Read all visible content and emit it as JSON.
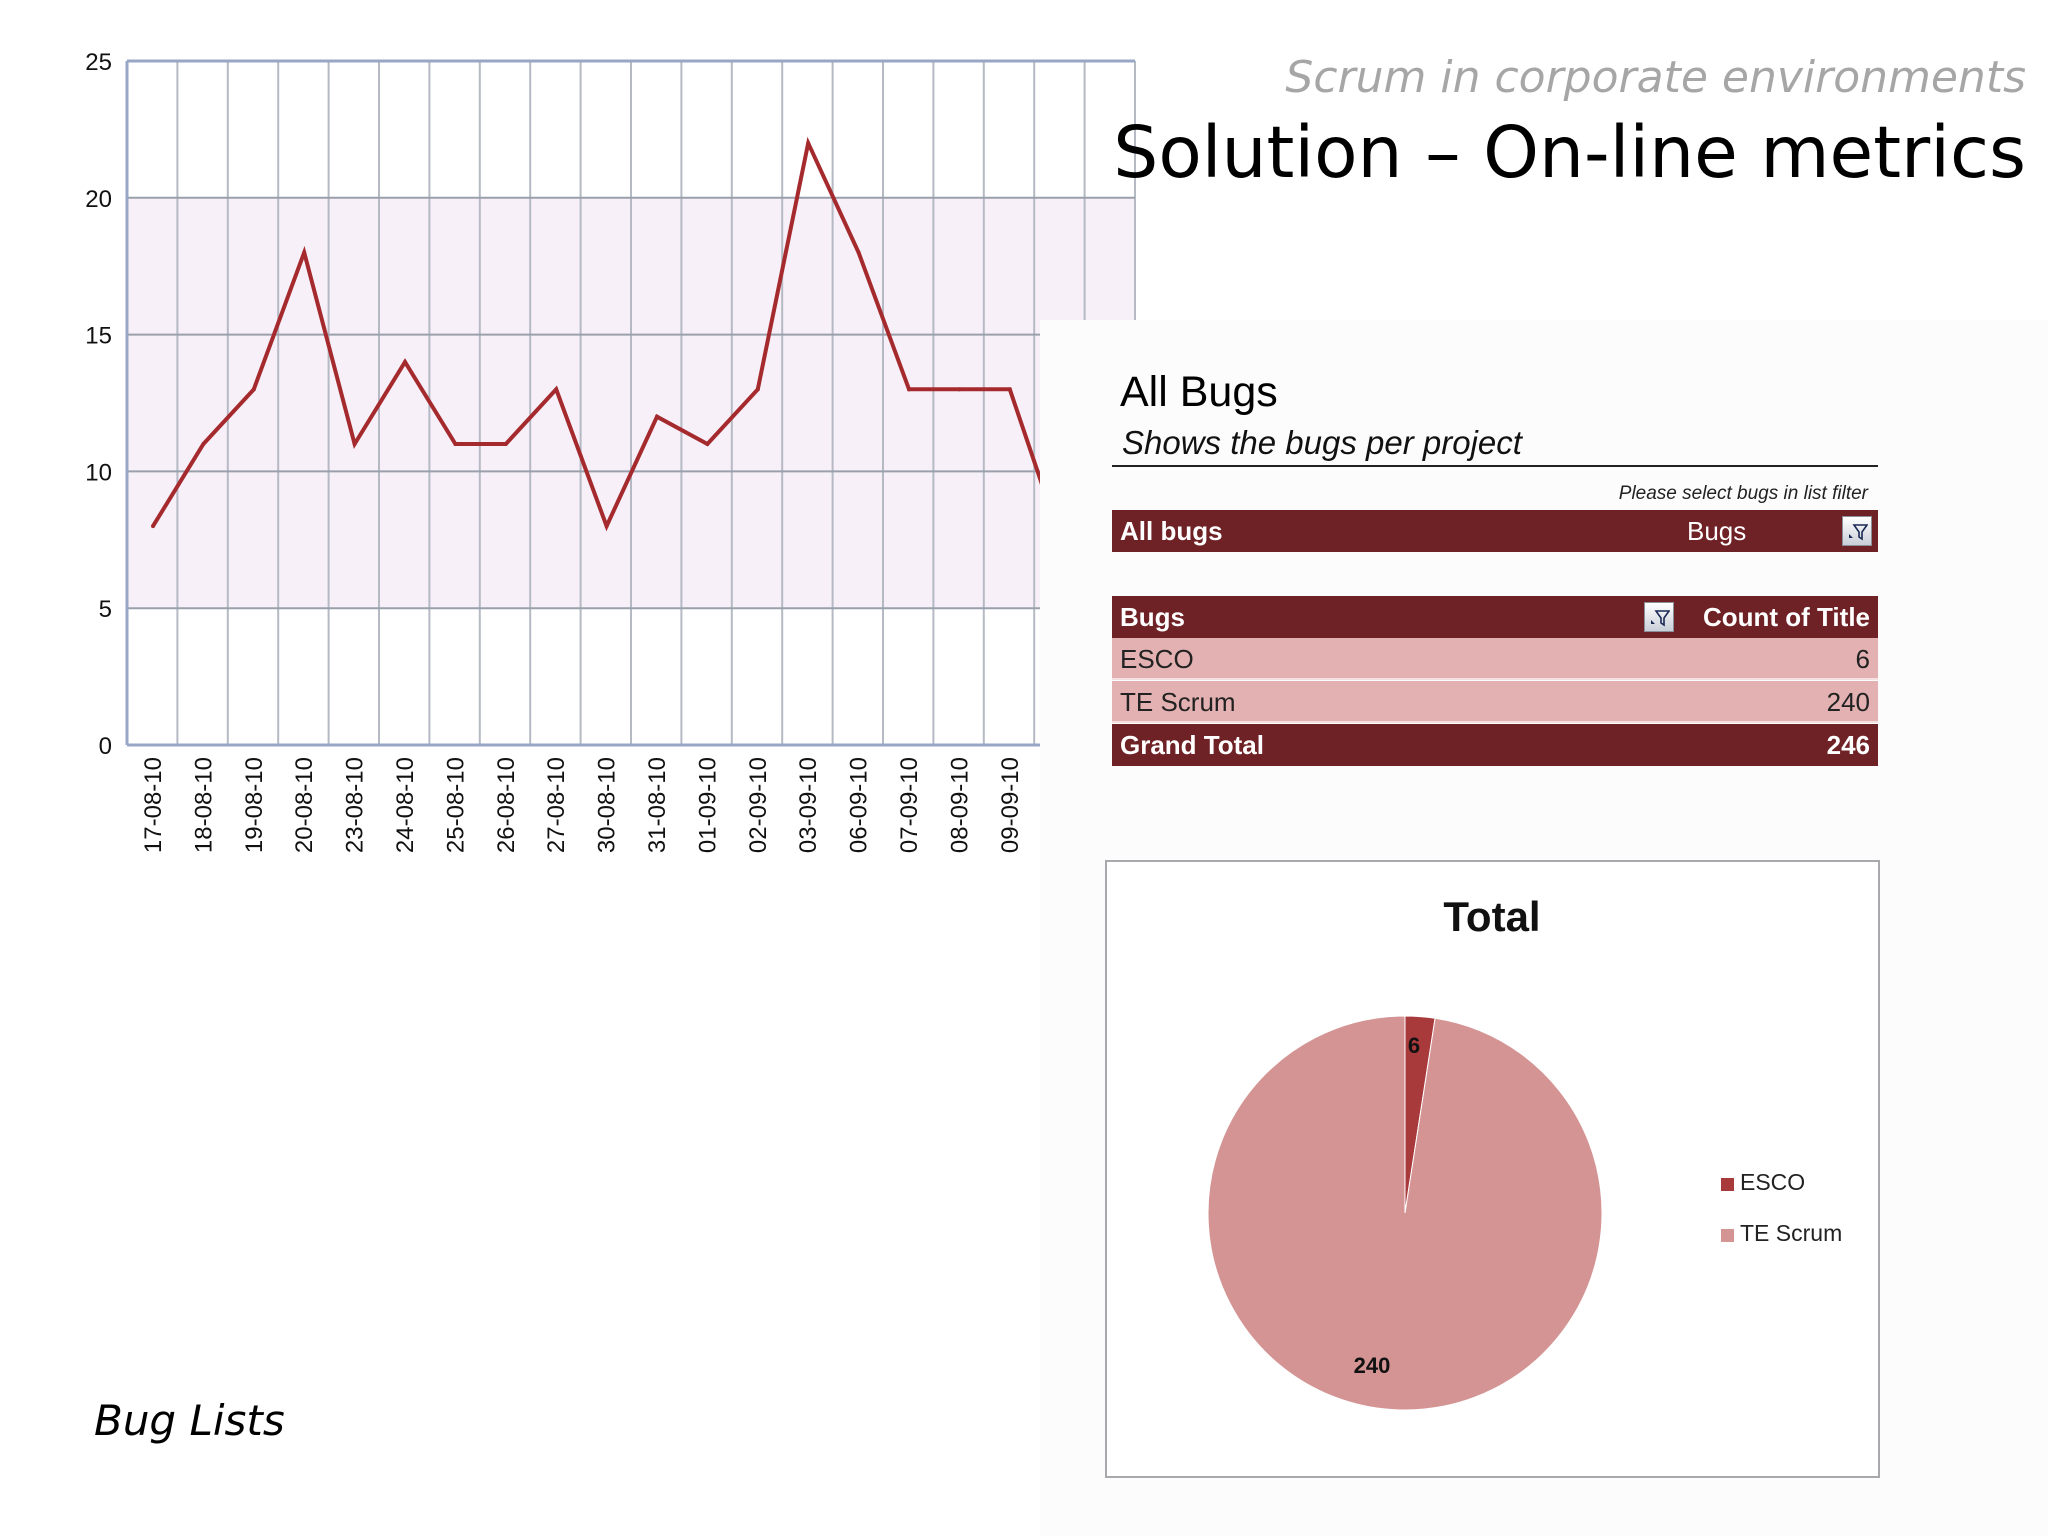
{
  "slide": {
    "subtitle": "Scrum in corporate environments",
    "title": "Solution – On-line metrics",
    "caption": "Bug Lists"
  },
  "colors": {
    "line": "#a52a2e",
    "pivot_dark": "#6f2226",
    "pivot_light": "#e3b1b1",
    "pie_esco": "#a83a3c",
    "pie_te_scrum": "#d49494"
  },
  "report": {
    "heading": "All Bugs",
    "description": "Shows the bugs per project",
    "filter_hint": "Please select bugs in list filter",
    "filter_row": {
      "label": "All bugs",
      "value": "Bugs",
      "icon": "filter-icon"
    },
    "pivot": {
      "header": {
        "label": "Bugs",
        "value_label": "Count of Title",
        "icon": "filter-icon"
      },
      "rows": [
        {
          "label": "ESCO",
          "value": "6"
        },
        {
          "label": "TE Scrum",
          "value": "240"
        }
      ],
      "total": {
        "label": "Grand Total",
        "value": "246"
      }
    }
  },
  "chart_data": [
    {
      "type": "line",
      "title": "",
      "xlabel": "",
      "ylabel": "",
      "x": [
        "17-08-10",
        "18-08-10",
        "19-08-10",
        "20-08-10",
        "23-08-10",
        "24-08-10",
        "25-08-10",
        "26-08-10",
        "27-08-10",
        "30-08-10",
        "31-08-10",
        "01-09-10",
        "02-09-10",
        "03-09-10",
        "06-09-10",
        "07-09-10",
        "08-09-10",
        "09-09-10"
      ],
      "series": [
        {
          "values": [
            8,
            11,
            13,
            18,
            11,
            14,
            11,
            11,
            13,
            8,
            12,
            11,
            13,
            22,
            18,
            13,
            13,
            13
          ]
        }
      ],
      "ylim": [
        0,
        25
      ],
      "yticks": [
        "0",
        "5",
        "10",
        "15",
        "20",
        "25"
      ],
      "grid": true,
      "legend": "none"
    },
    {
      "type": "pie",
      "title": "Total",
      "labels": [
        "ESCO",
        "TE Scrum"
      ],
      "values": [
        6,
        240
      ],
      "data_labels": [
        "6",
        "240"
      ],
      "legend": "right"
    }
  ]
}
